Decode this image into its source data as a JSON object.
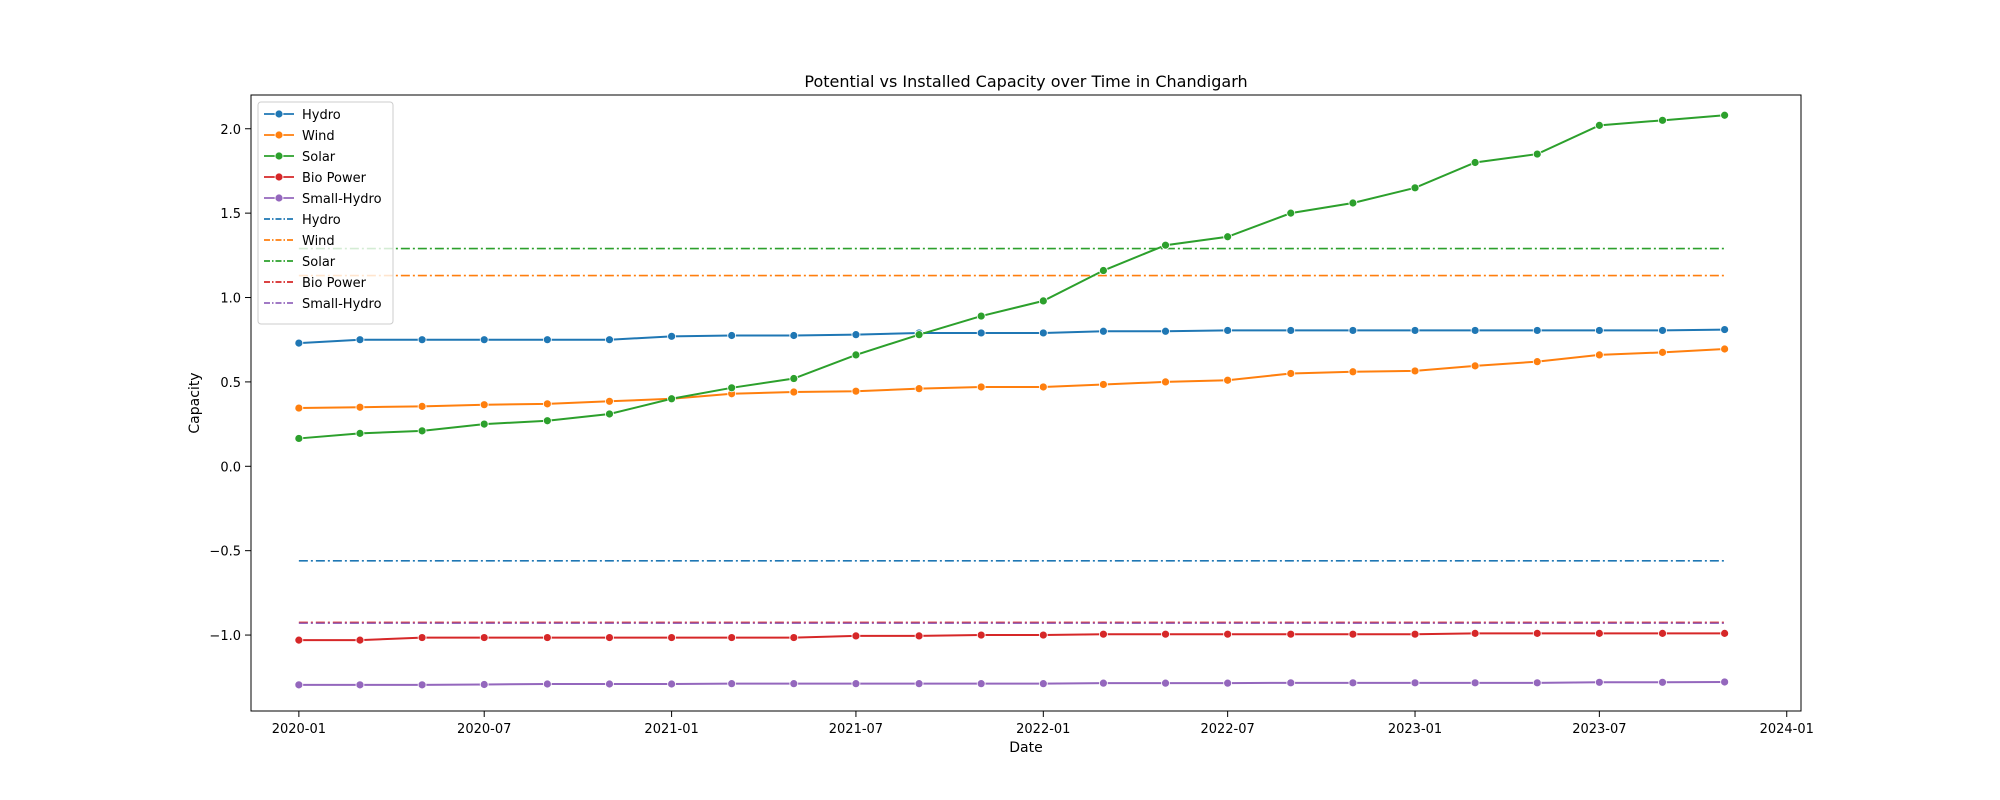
{
  "chart_data": {
    "type": "line",
    "title": "Potential vs Installed Capacity over Time in Chandigarh",
    "xlabel": "Date",
    "ylabel": "Capacity",
    "x": [
      "2020-01",
      "2020-03",
      "2020-05",
      "2020-07",
      "2020-09",
      "2020-11",
      "2021-01",
      "2021-03",
      "2021-05",
      "2021-07",
      "2021-09",
      "2021-11",
      "2022-01",
      "2022-03",
      "2022-05",
      "2022-07",
      "2022-09",
      "2022-11",
      "2023-01",
      "2023-03",
      "2023-05",
      "2023-07",
      "2023-09",
      "2023-11"
    ],
    "xlim": [
      "2019-11-15",
      "2024-01-15"
    ],
    "ylim": [
      -1.45,
      2.2
    ],
    "x_ticks": [
      "2020-01",
      "2020-07",
      "2021-01",
      "2021-07",
      "2022-01",
      "2022-07",
      "2023-01",
      "2023-07",
      "2024-01"
    ],
    "y_ticks": [
      -1.0,
      -0.5,
      0.0,
      0.5,
      1.0,
      1.5,
      2.0
    ],
    "y_tick_labels": [
      "−1.0",
      "−0.5",
      "0.0",
      "0.5",
      "1.0",
      "1.5",
      "2.0"
    ],
    "grid": false,
    "legend_position": "top-left",
    "series": [
      {
        "name": "Hydro",
        "style": "line-marker",
        "color": "#1f77b4",
        "values": [
          0.73,
          0.75,
          0.75,
          0.75,
          0.75,
          0.75,
          0.77,
          0.775,
          0.775,
          0.78,
          0.79,
          0.79,
          0.79,
          0.8,
          0.8,
          0.805,
          0.805,
          0.805,
          0.805,
          0.805,
          0.805,
          0.805,
          0.805,
          0.81
        ]
      },
      {
        "name": "Wind",
        "style": "line-marker",
        "color": "#ff7f0e",
        "values": [
          0.345,
          0.35,
          0.355,
          0.365,
          0.37,
          0.385,
          0.4,
          0.43,
          0.44,
          0.445,
          0.46,
          0.47,
          0.47,
          0.485,
          0.5,
          0.51,
          0.55,
          0.56,
          0.565,
          0.595,
          0.62,
          0.66,
          0.675,
          0.695
        ]
      },
      {
        "name": "Solar",
        "style": "line-marker",
        "color": "#2ca02c",
        "values": [
          0.165,
          0.195,
          0.21,
          0.25,
          0.27,
          0.31,
          0.4,
          0.465,
          0.52,
          0.66,
          0.78,
          0.89,
          0.98,
          1.16,
          1.31,
          1.36,
          1.5,
          1.56,
          1.65,
          1.8,
          1.85,
          2.02,
          2.05,
          2.08
        ]
      },
      {
        "name": "Bio Power",
        "style": "line-marker",
        "color": "#d62728",
        "values": [
          -1.03,
          -1.03,
          -1.015,
          -1.015,
          -1.015,
          -1.015,
          -1.015,
          -1.015,
          -1.015,
          -1.005,
          -1.005,
          -1.0,
          -1.0,
          -0.995,
          -0.995,
          -0.995,
          -0.995,
          -0.995,
          -0.995,
          -0.99,
          -0.99,
          -0.99,
          -0.99,
          -0.99
        ]
      },
      {
        "name": "Small-Hydro",
        "style": "line-marker",
        "color": "#9467bd",
        "values": [
          -1.295,
          -1.295,
          -1.295,
          -1.293,
          -1.29,
          -1.29,
          -1.29,
          -1.288,
          -1.288,
          -1.288,
          -1.288,
          -1.288,
          -1.288,
          -1.285,
          -1.285,
          -1.285,
          -1.283,
          -1.283,
          -1.283,
          -1.283,
          -1.283,
          -1.28,
          -1.28,
          -1.278
        ]
      },
      {
        "name": "Hydro",
        "style": "dashdot",
        "color": "#1f77b4",
        "value": -0.56
      },
      {
        "name": "Wind",
        "style": "dashdot",
        "color": "#ff7f0e",
        "value": 1.13
      },
      {
        "name": "Solar",
        "style": "dashdot",
        "color": "#2ca02c",
        "value": 1.29
      },
      {
        "name": "Bio Power",
        "style": "dashdot",
        "color": "#d62728",
        "value": -0.925
      },
      {
        "name": "Small-Hydro",
        "style": "dashdot",
        "color": "#9467bd",
        "value": -0.93
      }
    ]
  }
}
